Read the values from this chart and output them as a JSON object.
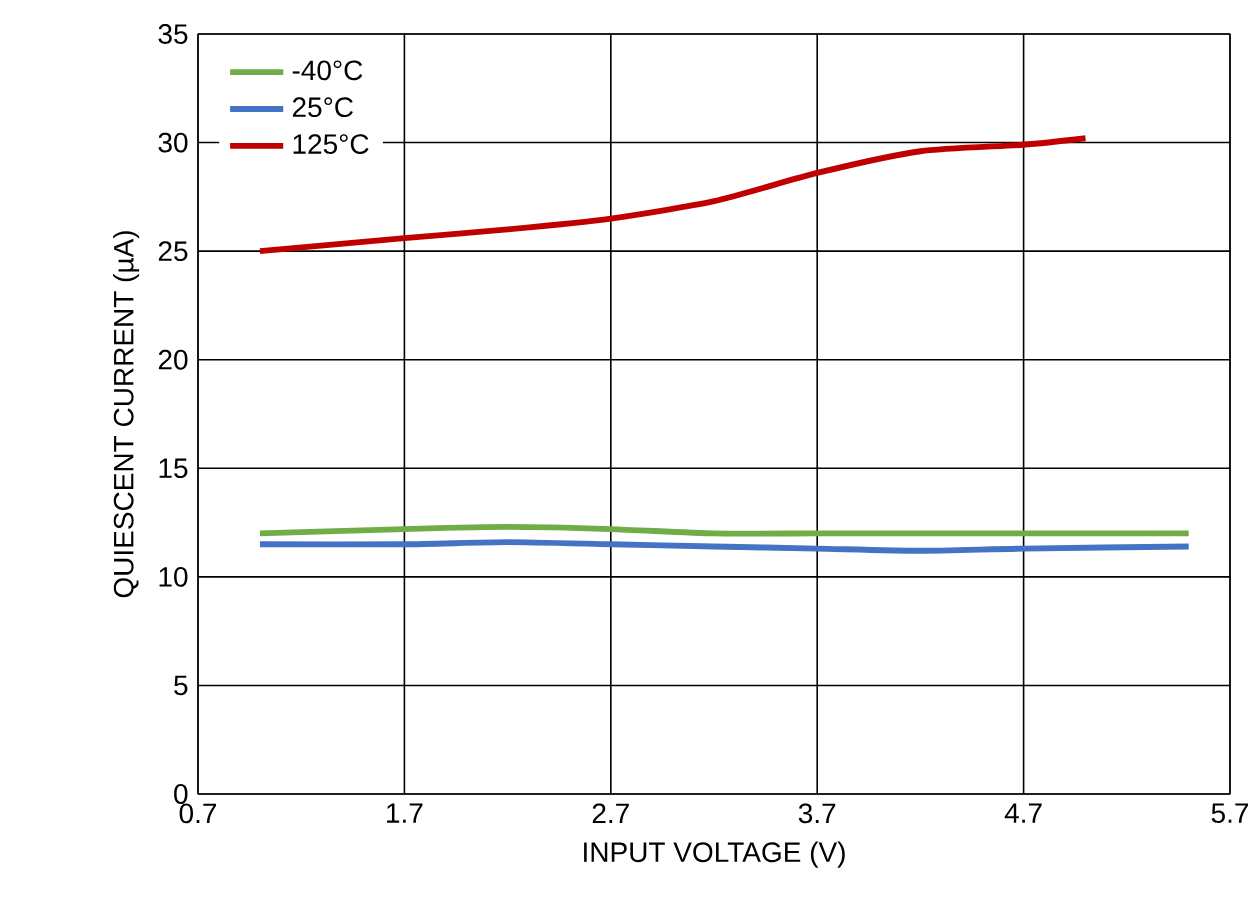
{
  "chart_data": {
    "type": "line",
    "xlabel": "INPUT VOLTAGE (V)",
    "ylabel": "QUIESCENT CURRENT (µA)",
    "xlim": [
      0.7,
      5.7
    ],
    "ylim": [
      0,
      35
    ],
    "xticks": [
      0.7,
      1.7,
      2.7,
      3.7,
      4.7,
      5.7
    ],
    "yticks": [
      0,
      5,
      10,
      15,
      20,
      25,
      30,
      35
    ],
    "grid": true,
    "legend": "top left",
    "series": [
      {
        "name": "-40°C",
        "color": "#70ad47",
        "x": [
          1.0,
          1.7,
          2.2,
          2.7,
          3.2,
          3.7,
          4.2,
          4.7,
          5.5
        ],
        "values": [
          12.0,
          12.2,
          12.3,
          12.2,
          12.0,
          12.0,
          12.0,
          12.0,
          12.0
        ]
      },
      {
        "name": "25°C",
        "color": "#4472c4",
        "x": [
          1.0,
          1.7,
          2.2,
          2.7,
          3.2,
          3.7,
          4.2,
          4.7,
          5.5
        ],
        "values": [
          11.5,
          11.5,
          11.6,
          11.5,
          11.4,
          11.3,
          11.2,
          11.3,
          11.4
        ]
      },
      {
        "name": "125°C",
        "color": "#c00000",
        "x": [
          1.0,
          1.7,
          2.2,
          2.7,
          3.2,
          3.7,
          4.2,
          4.7,
          5.0
        ],
        "values": [
          25.0,
          25.6,
          26.0,
          26.5,
          27.3,
          28.6,
          29.6,
          29.9,
          30.2
        ]
      }
    ]
  }
}
